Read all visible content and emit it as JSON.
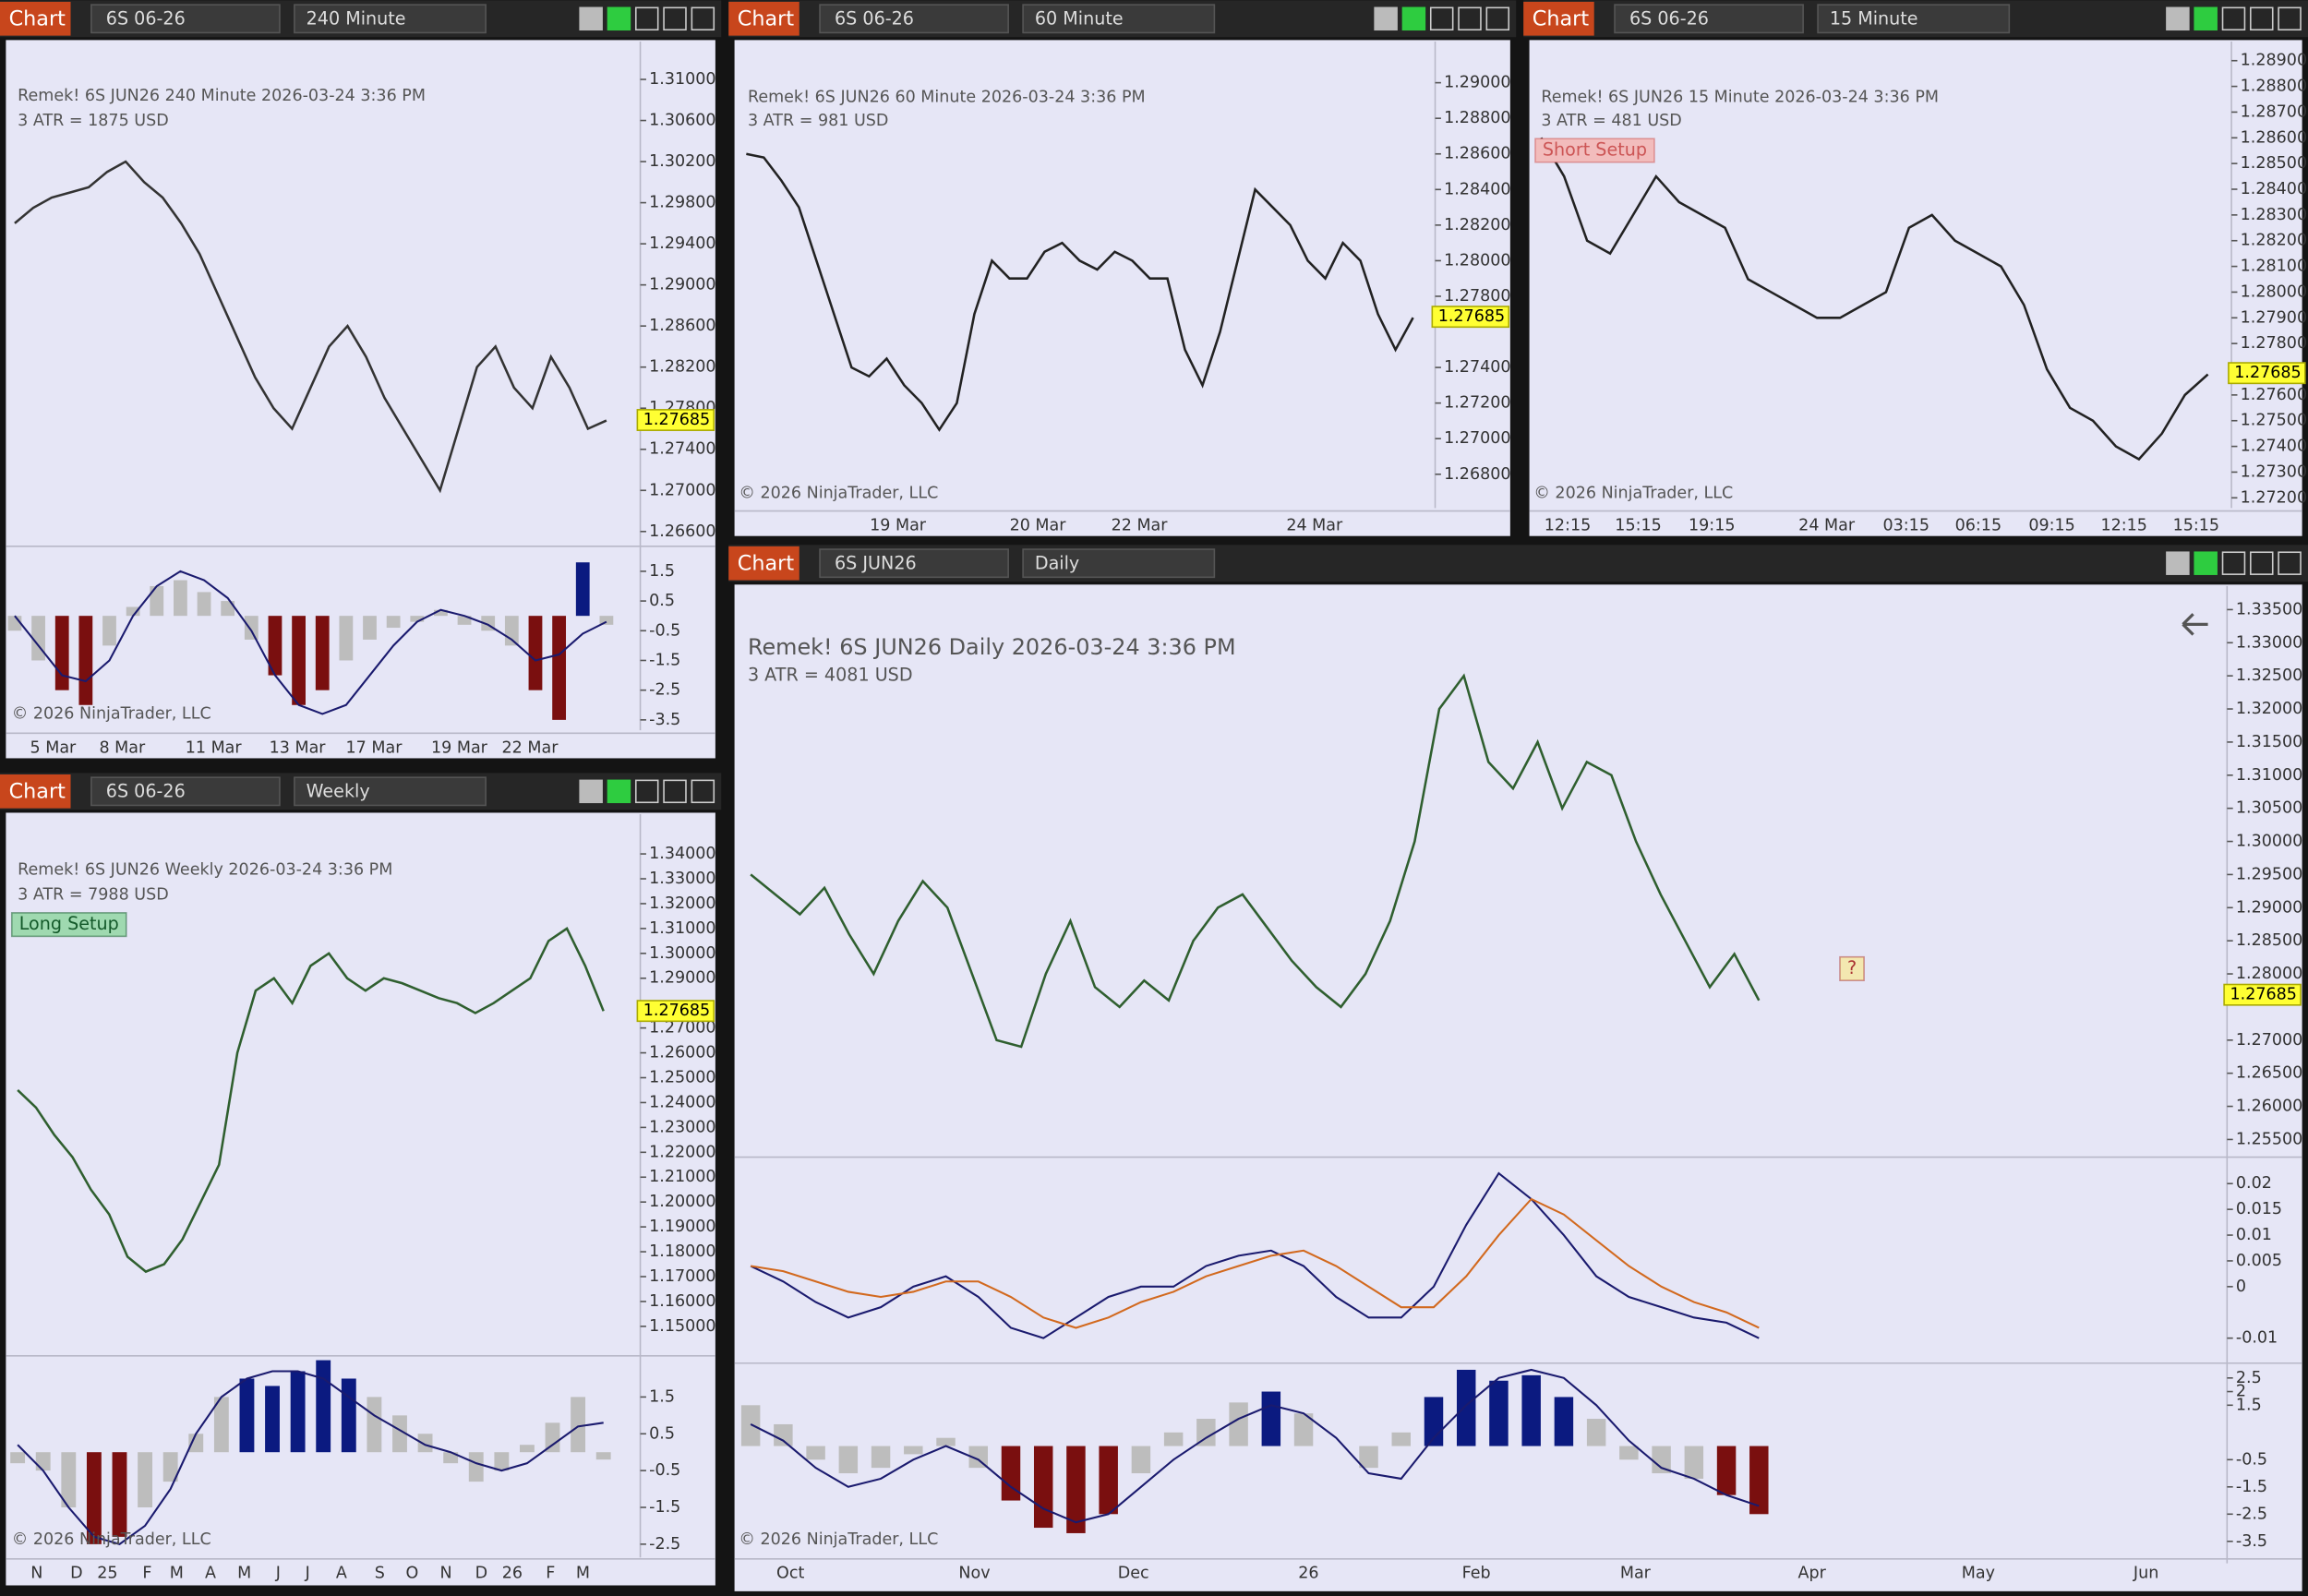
{
  "windows": [
    {
      "header": {
        "title": "Chart",
        "instrument": "6S 06-26",
        "interval": "240 Minute"
      },
      "info": [
        "Remek!  6S JUN26  240 Minute  2026-03-24 3:36 PM",
        "3 ATR = 1875 USD"
      ],
      "copyright": "© 2026 NinjaTrader, LLC",
      "price": {
        "ylim": [
          1.2647,
          1.3134
        ],
        "yticks": [
          {
            "value": 1.31,
            "label": "1.31000"
          },
          {
            "value": 1.306,
            "label": "1.30600"
          },
          {
            "value": 1.302,
            "label": "1.30200"
          },
          {
            "value": 1.298,
            "label": "1.29800"
          },
          {
            "value": 1.294,
            "label": "1.29400"
          },
          {
            "value": 1.29,
            "label": "1.29000"
          },
          {
            "value": 1.286,
            "label": "1.28600"
          },
          {
            "value": 1.282,
            "label": "1.28200"
          },
          {
            "value": 1.278,
            "label": "1.27800"
          },
          {
            "value": 1.274,
            "label": "1.27400"
          },
          {
            "value": 1.27,
            "label": "1.27000"
          },
          {
            "value": 1.266,
            "label": "1.26600"
          }
        ],
        "last": 1.27685,
        "color": "#333333",
        "closes": [
          1.296,
          1.2975,
          1.2985,
          1.299,
          1.2995,
          1.301,
          1.302,
          1.3,
          1.2985,
          1.296,
          1.293,
          1.289,
          1.285,
          1.281,
          1.278,
          1.276,
          1.28,
          1.284,
          1.286,
          1.283,
          1.279,
          1.276,
          1.273,
          1.27,
          1.276,
          1.282,
          1.284,
          1.28,
          1.278,
          1.283,
          1.28,
          1.276,
          1.2768
        ]
      },
      "time_labels": [
        "5 Mar",
        "8 Mar",
        "11 Mar",
        "13 Mar",
        "17 Mar",
        "19 Mar",
        "22 Mar"
      ],
      "oscillators": [
        {
          "ylim": [
            -3.95,
            2.29
          ],
          "yticks": [
            1.5,
            0.5,
            -0.5,
            -1.5,
            -2.5,
            -3.5
          ],
          "histogram": [
            -0.5,
            -1.5,
            -2.5,
            -3,
            -1,
            0.3,
            1,
            1.2,
            0.8,
            0.5,
            -0.8,
            -2,
            -3,
            -2.5,
            -1.5,
            -0.8,
            -0.4,
            -0.2,
            0.2,
            -0.3,
            -0.5,
            -1,
            -2.5,
            -3.5,
            1.8,
            -0.3
          ],
          "lines": [
            {
              "color": "#1a1a6e",
              "values": [
                0,
                -1,
                -2,
                -2.2,
                -1.5,
                0,
                1,
                1.5,
                1.2,
                0.6,
                -0.5,
                -2,
                -3,
                -3.3,
                -3,
                -2,
                -1,
                -0.2,
                0.2,
                0,
                -0.3,
                -0.8,
                -1.5,
                -1.3,
                -0.6,
                -0.2
              ]
            }
          ]
        }
      ]
    },
    {
      "header": {
        "title": "Chart",
        "instrument": "6S 06-26",
        "interval": "60 Minute"
      },
      "info": [
        "Remek!  6S JUN26  60 Minute  2026-03-24 3:36 PM",
        "3 ATR = 981 USD"
      ],
      "copyright": "© 2026 NinjaTrader, LLC",
      "price": {
        "ylim": [
          1.2661,
          1.29215
        ],
        "yticks": [
          {
            "value": 1.29,
            "label": "1.29000"
          },
          {
            "value": 1.288,
            "label": "1.28800"
          },
          {
            "value": 1.286,
            "label": "1.28600"
          },
          {
            "value": 1.284,
            "label": "1.28400"
          },
          {
            "value": 1.282,
            "label": "1.28200"
          },
          {
            "value": 1.28,
            "label": "1.28000"
          },
          {
            "value": 1.278,
            "label": "1.27800"
          },
          {
            "value": 1.274,
            "label": "1.27400"
          },
          {
            "value": 1.272,
            "label": "1.27200"
          },
          {
            "value": 1.27,
            "label": "1.27000"
          },
          {
            "value": 1.268,
            "label": "1.26800"
          }
        ],
        "last": 1.27685,
        "color": "#222222",
        "closes": [
          1.286,
          1.2858,
          1.2845,
          1.283,
          1.28,
          1.277,
          1.274,
          1.2735,
          1.2745,
          1.273,
          1.272,
          1.2705,
          1.272,
          1.277,
          1.28,
          1.279,
          1.279,
          1.2805,
          1.281,
          1.28,
          1.2795,
          1.2805,
          1.28,
          1.279,
          1.279,
          1.275,
          1.273,
          1.276,
          1.28,
          1.284,
          1.283,
          1.282,
          1.28,
          1.279,
          1.281,
          1.28,
          1.277,
          1.275,
          1.2768
        ]
      },
      "time_labels": [
        "19 Mar",
        "20 Mar",
        "22 Mar",
        "24 Mar"
      ],
      "oscillators": []
    },
    {
      "header": {
        "title": "Chart",
        "instrument": "6S 06-26",
        "interval": "15 Minute"
      },
      "info": [
        "Remek!  6S JUN26  15 Minute  2026-03-24 3:36 PM",
        "3 ATR = 481 USD"
      ],
      "badge": "Short Setup",
      "copyright": "© 2026 NinjaTrader, LLC",
      "price": {
        "ylim": [
          1.27143,
          1.28963
        ],
        "yticks": [
          {
            "value": 1.289,
            "label": "1.28900"
          },
          {
            "value": 1.288,
            "label": "1.28800"
          },
          {
            "value": 1.287,
            "label": "1.28700"
          },
          {
            "value": 1.286,
            "label": "1.28600"
          },
          {
            "value": 1.285,
            "label": "1.28500"
          },
          {
            "value": 1.284,
            "label": "1.28400"
          },
          {
            "value": 1.283,
            "label": "1.28300"
          },
          {
            "value": 1.282,
            "label": "1.28200"
          },
          {
            "value": 1.281,
            "label": "1.28100"
          },
          {
            "value": 1.28,
            "label": "1.28000"
          },
          {
            "value": 1.279,
            "label": "1.27900"
          },
          {
            "value": 1.278,
            "label": "1.27800"
          },
          {
            "value": 1.276,
            "label": "1.27600"
          },
          {
            "value": 1.275,
            "label": "1.27500"
          },
          {
            "value": 1.274,
            "label": "1.27400"
          },
          {
            "value": 1.273,
            "label": "1.27300"
          },
          {
            "value": 1.272,
            "label": "1.27200"
          }
        ],
        "last": 1.27685,
        "color": "#222222",
        "closes": [
          1.286,
          1.2845,
          1.282,
          1.2815,
          1.283,
          1.2845,
          1.2835,
          1.283,
          1.2825,
          1.2805,
          1.28,
          1.2795,
          1.279,
          1.279,
          1.2795,
          1.28,
          1.2825,
          1.283,
          1.282,
          1.2815,
          1.281,
          1.2795,
          1.277,
          1.2755,
          1.275,
          1.274,
          1.2735,
          1.2745,
          1.276,
          1.2768
        ]
      },
      "time_labels": [
        "12:15",
        "15:15",
        "19:15",
        "24 Mar",
        "03:15",
        "06:15",
        "09:15",
        "12:15",
        "15:15"
      ],
      "oscillators": []
    },
    {
      "header": {
        "title": "Chart",
        "instrument": "6S 06-26",
        "interval": "Weekly"
      },
      "info": [
        "Remek!  6S JUN26  Weekly  2026-03-24 3:36 PM",
        "3 ATR = 7988 USD"
      ],
      "badge": "Long Setup",
      "copyright": "© 2026 NinjaTrader, LLC",
      "price": {
        "ylim": [
          1.13875,
          1.35361
        ],
        "yticks": [
          {
            "value": 1.34,
            "label": "1.34000"
          },
          {
            "value": 1.33,
            "label": "1.33000"
          },
          {
            "value": 1.32,
            "label": "1.32000"
          },
          {
            "value": 1.31,
            "label": "1.31000"
          },
          {
            "value": 1.3,
            "label": "1.30000"
          },
          {
            "value": 1.29,
            "label": "1.29000"
          },
          {
            "value": 1.27,
            "label": "1.27000"
          },
          {
            "value": 1.26,
            "label": "1.26000"
          },
          {
            "value": 1.25,
            "label": "1.25000"
          },
          {
            "value": 1.24,
            "label": "1.24000"
          },
          {
            "value": 1.23,
            "label": "1.23000"
          },
          {
            "value": 1.22,
            "label": "1.22000"
          },
          {
            "value": 1.21,
            "label": "1.21000"
          },
          {
            "value": 1.2,
            "label": "1.20000"
          },
          {
            "value": 1.19,
            "label": "1.19000"
          },
          {
            "value": 1.18,
            "label": "1.18000"
          },
          {
            "value": 1.17,
            "label": "1.17000"
          },
          {
            "value": 1.16,
            "label": "1.16000"
          },
          {
            "value": 1.15,
            "label": "1.15000"
          }
        ],
        "last": 1.27685,
        "color": "#2f5f2f",
        "closes": [
          1.245,
          1.238,
          1.227,
          1.218,
          1.205,
          1.195,
          1.178,
          1.172,
          1.175,
          1.185,
          1.2,
          1.215,
          1.26,
          1.285,
          1.29,
          1.28,
          1.295,
          1.3,
          1.29,
          1.285,
          1.29,
          1.288,
          1.285,
          1.282,
          1.28,
          1.276,
          1.28,
          1.285,
          1.29,
          1.305,
          1.31,
          1.295,
          1.2768
        ]
      },
      "time_labels": [
        "N",
        "D",
        "25",
        "F",
        "M",
        "A",
        "M",
        "J",
        "J",
        "A",
        "S",
        "O",
        "N",
        "D",
        "26",
        "F",
        "M"
      ],
      "oscillators": [
        {
          "ylim": [
            -2.86,
            2.58
          ],
          "yticks": [
            1.5,
            0.5,
            -0.5,
            -1.5,
            -2.5
          ],
          "histogram": [
            -0.3,
            -0.5,
            -1.5,
            -2.5,
            -2.3,
            -1.5,
            -0.8,
            0.5,
            1.5,
            2,
            1.8,
            2.2,
            2.5,
            2,
            1.5,
            1,
            0.5,
            -0.3,
            -0.8,
            -0.5,
            0.2,
            0.8,
            1.5,
            -0.2
          ],
          "lines": [
            {
              "color": "#1a1a6e",
              "values": [
                0.2,
                -0.5,
                -1.5,
                -2.3,
                -2.5,
                -2,
                -1,
                0.5,
                1.5,
                2,
                2.2,
                2.2,
                2,
                1.5,
                1,
                0.6,
                0.2,
                0,
                -0.3,
                -0.5,
                -0.3,
                0.2,
                0.7,
                0.8
              ]
            }
          ]
        }
      ]
    },
    {
      "header": {
        "title": "Chart",
        "instrument": "6S JUN26",
        "interval": "Daily"
      },
      "info": [
        "Remek!  6S JUN26  Daily  2026-03-24 3:36 PM",
        "3 ATR = 4081 USD"
      ],
      "badge": "?",
      "copyright": "© 2026 NinjaTrader, LLC",
      "price": {
        "ylim": [
          1.25256,
          1.33811
        ],
        "yticks": [
          {
            "value": 1.335,
            "label": "1.33500"
          },
          {
            "value": 1.33,
            "label": "1.33000"
          },
          {
            "value": 1.325,
            "label": "1.32500"
          },
          {
            "value": 1.32,
            "label": "1.32000"
          },
          {
            "value": 1.315,
            "label": "1.31500"
          },
          {
            "value": 1.31,
            "label": "1.31000"
          },
          {
            "value": 1.305,
            "label": "1.30500"
          },
          {
            "value": 1.3,
            "label": "1.30000"
          },
          {
            "value": 1.295,
            "label": "1.29500"
          },
          {
            "value": 1.29,
            "label": "1.29000"
          },
          {
            "value": 1.285,
            "label": "1.28500"
          },
          {
            "value": 1.28,
            "label": "1.28000"
          },
          {
            "value": 1.27,
            "label": "1.27000"
          },
          {
            "value": 1.265,
            "label": "1.26500"
          },
          {
            "value": 1.26,
            "label": "1.26000"
          },
          {
            "value": 1.255,
            "label": "1.25500"
          }
        ],
        "last": 1.27685,
        "color": "#2f5f2f",
        "closes": [
          1.295,
          1.292,
          1.289,
          1.293,
          1.286,
          1.28,
          1.288,
          1.294,
          1.29,
          1.28,
          1.27,
          1.269,
          1.28,
          1.288,
          1.278,
          1.275,
          1.279,
          1.276,
          1.285,
          1.29,
          1.292,
          1.287,
          1.282,
          1.278,
          1.275,
          1.28,
          1.288,
          1.3,
          1.32,
          1.325,
          1.312,
          1.308,
          1.315,
          1.305,
          1.312,
          1.31,
          1.3,
          1.292,
          1.285,
          1.278,
          1.283,
          1.276
        ]
      },
      "time_labels": [
        "Oct",
        "Nov",
        "Dec",
        "26",
        "Feb",
        "Mar",
        "Apr",
        "May",
        "Jun"
      ],
      "oscillators": [
        {
          "ylim": [
            -0.01457,
            0.02486
          ],
          "yticks": [
            0.02,
            0.015,
            0.01,
            0.005,
            0,
            -0.01
          ],
          "lines": [
            {
              "color": "#1a1a6e",
              "values": [
                0.004,
                0.001,
                -0.003,
                -0.006,
                -0.004,
                0,
                0.002,
                -0.002,
                -0.008,
                -0.01,
                -0.006,
                -0.002,
                0,
                0,
                0.004,
                0.006,
                0.007,
                0.004,
                -0.002,
                -0.006,
                -0.006,
                0,
                0.012,
                0.022,
                0.017,
                0.01,
                0.002,
                -0.002,
                -0.004,
                -0.006,
                -0.007,
                -0.01
              ]
            },
            {
              "color": "#d2691e",
              "values": [
                0.004,
                0.003,
                0.001,
                -0.001,
                -0.002,
                -0.001,
                0.001,
                0.001,
                -0.002,
                -0.006,
                -0.008,
                -0.006,
                -0.003,
                -0.001,
                0.002,
                0.004,
                0.006,
                0.007,
                0.004,
                0,
                -0.004,
                -0.004,
                0.002,
                0.01,
                0.017,
                0.014,
                0.009,
                0.004,
                0,
                -0.003,
                -0.005,
                -0.008
              ]
            }
          ]
        },
        {
          "ylim": [
            -4.09,
            2.99
          ],
          "yticks": [
            2.5,
            2,
            1.5,
            -0.5,
            -1.5,
            -2.5,
            -3.5
          ],
          "histogram": [
            1.5,
            0.8,
            -0.5,
            -1,
            -0.8,
            -0.3,
            0.3,
            -0.8,
            -2,
            -3,
            -3.2,
            -2.5,
            -1,
            0.5,
            1,
            1.6,
            2,
            1.2,
            0,
            -0.8,
            0.5,
            1.8,
            2.8,
            2.4,
            2.6,
            1.8,
            1,
            -0.5,
            -1,
            -1.2,
            -1.8,
            -2.5
          ],
          "lines": [
            {
              "color": "#1a1a6e",
              "values": [
                0.8,
                0.2,
                -0.8,
                -1.5,
                -1.2,
                -0.5,
                0,
                -0.5,
                -1.5,
                -2.3,
                -2.8,
                -2.5,
                -1.5,
                -0.5,
                0.3,
                1,
                1.5,
                1.2,
                0.3,
                -1,
                -1.2,
                0.3,
                1.5,
                2.5,
                2.8,
                2.5,
                1.5,
                0.2,
                -0.8,
                -1.2,
                -1.8,
                -2.2
              ]
            }
          ]
        }
      ]
    }
  ]
}
